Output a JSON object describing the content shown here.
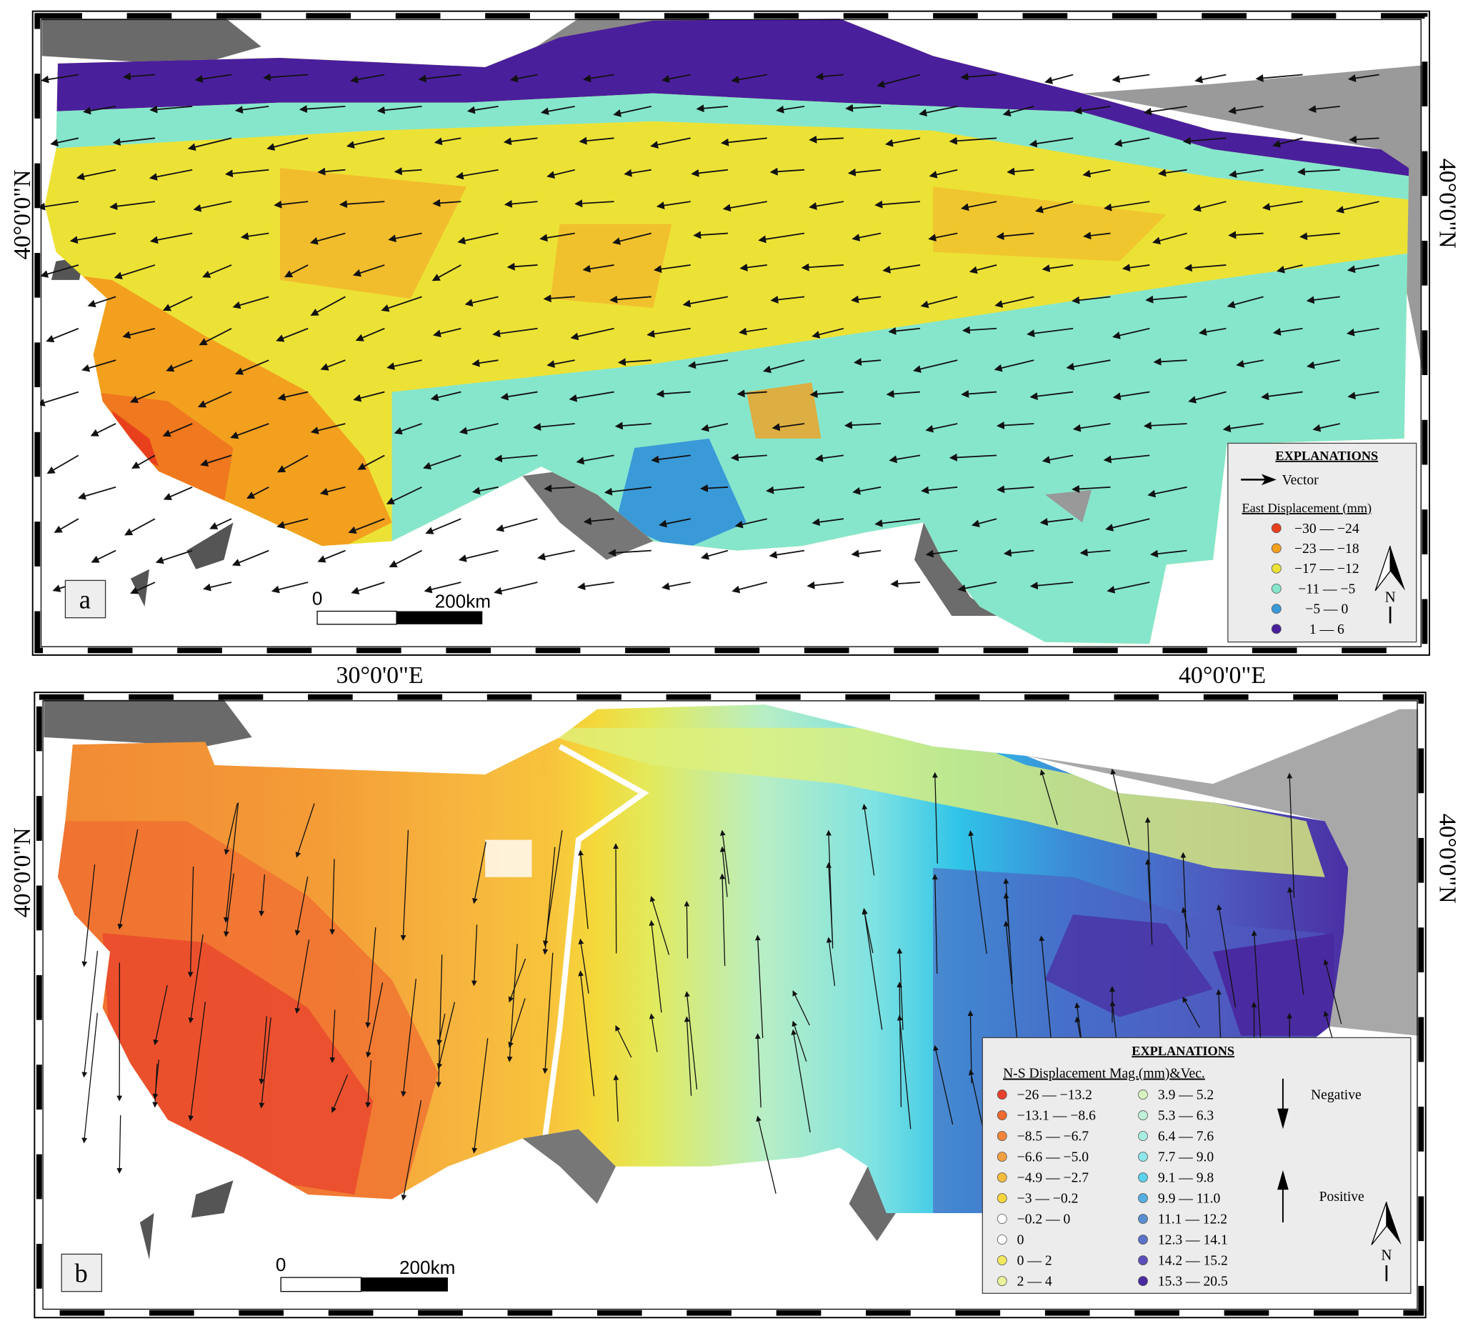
{
  "coordinates": {
    "lon_labels": [
      "30°0'0\"E",
      "40°0'0\"E"
    ],
    "lat_label": "40°0'0\"N"
  },
  "panel_a": {
    "label": "a",
    "scale_bar": {
      "start": "0",
      "end": "200km"
    },
    "legend": {
      "title": "EXPLANATIONS",
      "vector_label": "Vector",
      "subtitle": "East Displacement (mm)",
      "items": [
        {
          "label": "−30 — −24",
          "color": "#e8401c"
        },
        {
          "label": "−23 — −18",
          "color": "#f2a01e"
        },
        {
          "label": "−17 — −12",
          "color": "#ece236"
        },
        {
          "label": "−11 — −5",
          "color": "#86e6cc"
        },
        {
          "label": "−5 — 0",
          "color": "#3a9ad8"
        },
        {
          "label": "1 — 6",
          "color": "#4a1f9c"
        }
      ],
      "north_label": "N"
    }
  },
  "panel_b": {
    "label": "b",
    "scale_bar": {
      "start": "0",
      "end": "200km"
    },
    "legend": {
      "title": "EXPLANATIONS",
      "subtitle": "N-S Displacement Mag.(mm)&Vec.",
      "items_left": [
        {
          "label": "−26 — −13.2",
          "color": "#e8402c"
        },
        {
          "label": "−13.1 — −8.6",
          "color": "#ef6a30"
        },
        {
          "label": "−8.5 — −6.7",
          "color": "#f2843a"
        },
        {
          "label": "−6.6 — −5.0",
          "color": "#f4a040"
        },
        {
          "label": "−4.9 — −2.7",
          "color": "#f8bc3c"
        },
        {
          "label": "−3 — −0.2",
          "color": "#f6d63a"
        },
        {
          "label": "−0.2 — 0",
          "color": "#ffffff"
        },
        {
          "label": "0",
          "color": "#ffffff"
        },
        {
          "label": "0 — 2",
          "color": "#f2e860"
        },
        {
          "label": "2 — 4",
          "color": "#eaf29a"
        }
      ],
      "items_right": [
        {
          "label": "3.9 — 5.2",
          "color": "#d6f2c0"
        },
        {
          "label": "5.3 — 6.3",
          "color": "#c0f0d8"
        },
        {
          "label": "6.4 — 7.6",
          "color": "#a8eee0"
        },
        {
          "label": "7.7 — 9.0",
          "color": "#8ee6ea"
        },
        {
          "label": "9.1 — 9.8",
          "color": "#5cd2ee"
        },
        {
          "label": "9.9 — 11.0",
          "color": "#56aee2"
        },
        {
          "label": "11.1 — 12.2",
          "color": "#5a8ed2"
        },
        {
          "label": "12.3 — 14.1",
          "color": "#5a72c8"
        },
        {
          "label": "14.2 — 15.2",
          "color": "#5c4eb8"
        },
        {
          "label": "15.3 — 20.5",
          "color": "#4a2aa0"
        }
      ],
      "negative_label": "Negative",
      "positive_label": "Positive",
      "north_label": "N"
    }
  }
}
